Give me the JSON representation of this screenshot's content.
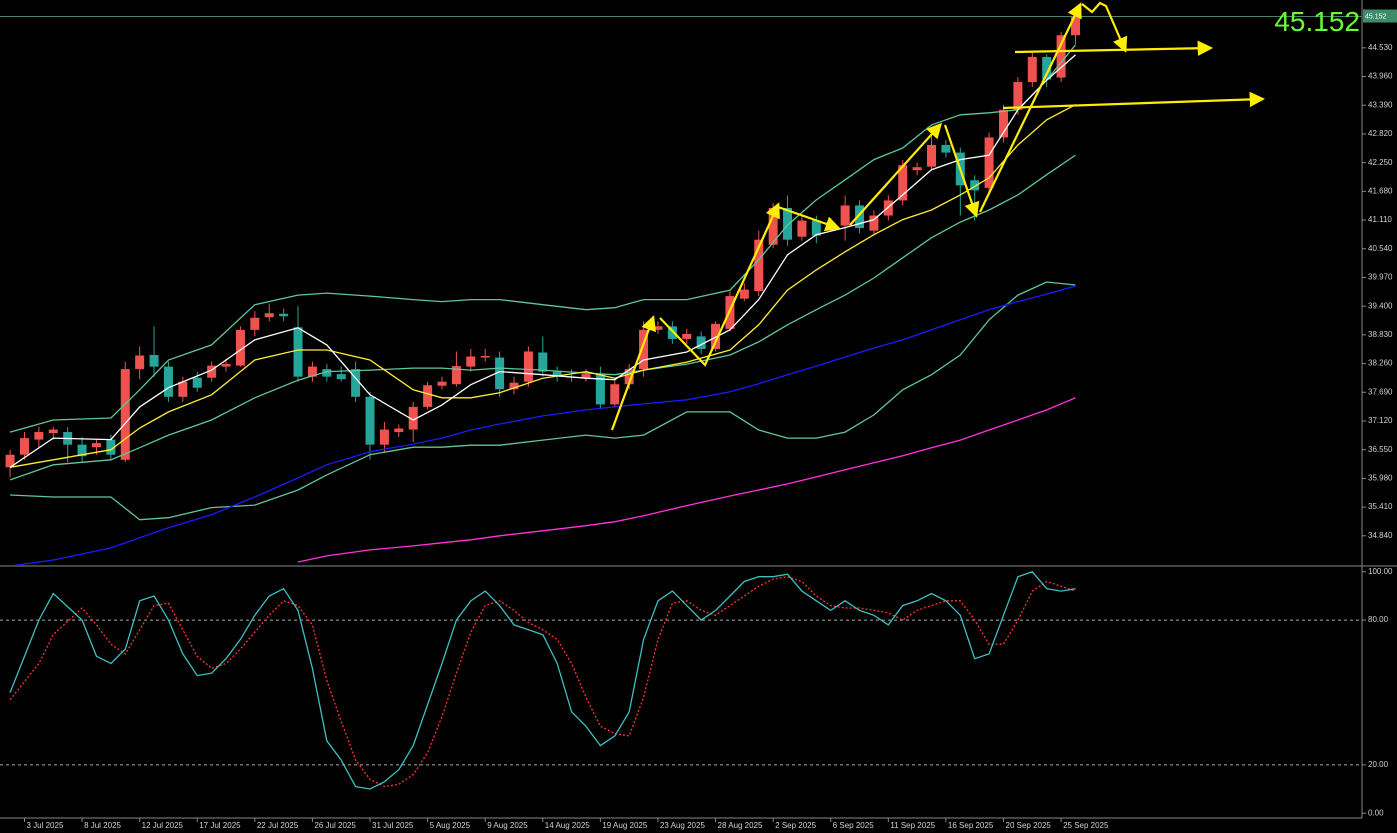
{
  "chart_data": [
    {
      "type": "candlestick",
      "x": [
        0,
        1,
        2,
        3,
        4,
        5,
        6,
        7,
        8,
        9,
        10,
        11,
        12,
        13,
        14,
        15,
        16,
        17,
        18,
        19,
        20,
        21,
        22,
        23,
        24,
        25,
        26,
        27,
        28,
        29,
        30,
        31,
        32,
        33,
        34,
        35,
        36,
        37,
        38,
        39,
        40,
        41,
        42,
        43,
        44,
        45,
        46,
        47,
        48,
        49,
        50,
        51,
        52,
        53,
        54,
        55,
        56,
        57,
        58,
        59,
        60,
        61,
        62,
        63,
        64,
        65,
        66,
        67,
        68,
        69,
        70,
        71,
        72,
        73,
        74
      ],
      "open": [
        36.2,
        36.45,
        36.75,
        36.88,
        36.9,
        36.65,
        36.6,
        36.75,
        36.35,
        38.15,
        38.43,
        38.2,
        37.6,
        37.98,
        37.98,
        38.2,
        38.22,
        38.93,
        39.18,
        39.25,
        38.98,
        38.0,
        38.15,
        38.05,
        38.15,
        37.6,
        36.65,
        36.9,
        36.95,
        37.4,
        37.82,
        37.85,
        38.2,
        38.38,
        38.38,
        37.75,
        37.9,
        38.48,
        38.1,
        38.0,
        37.98,
        38.05,
        37.45,
        37.85,
        38.15,
        38.93,
        39.0,
        38.75,
        38.8,
        38.55,
        38.95,
        39.55,
        39.7,
        40.62,
        41.35,
        40.78,
        41.1,
        41.0,
        41.0,
        41.4,
        40.9,
        41.2,
        41.5,
        42.1,
        42.17,
        42.6,
        42.45,
        41.9,
        41.75,
        42.75,
        43.3,
        43.85,
        44.35,
        43.94,
        44.78
      ],
      "high": [
        36.55,
        36.9,
        37.0,
        37.0,
        37.0,
        36.8,
        36.75,
        36.85,
        38.3,
        38.6,
        39.0,
        38.3,
        38.0,
        38.1,
        38.3,
        38.35,
        39.0,
        39.3,
        39.45,
        39.35,
        39.4,
        38.3,
        38.25,
        38.2,
        38.3,
        37.7,
        37.1,
        37.05,
        37.5,
        37.9,
        38.0,
        38.5,
        38.55,
        38.55,
        38.5,
        38.0,
        38.6,
        38.8,
        38.2,
        38.15,
        38.15,
        38.2,
        37.95,
        38.25,
        39.1,
        39.1,
        39.1,
        38.95,
        38.9,
        39.1,
        39.7,
        39.85,
        40.9,
        41.45,
        41.6,
        41.2,
        41.2,
        41.15,
        41.6,
        41.5,
        41.3,
        41.6,
        42.3,
        42.25,
        42.85,
        42.7,
        42.55,
        42.0,
        42.85,
        43.4,
        43.95,
        44.45,
        44.4,
        44.85,
        45.3
      ],
      "low": [
        36.0,
        36.35,
        36.6,
        36.75,
        36.3,
        36.3,
        36.45,
        36.35,
        36.3,
        37.95,
        38.0,
        37.5,
        37.5,
        37.7,
        37.9,
        38.1,
        38.2,
        38.8,
        39.1,
        39.1,
        37.9,
        37.9,
        37.9,
        37.9,
        37.5,
        36.35,
        36.5,
        36.8,
        36.7,
        37.35,
        37.75,
        37.8,
        38.1,
        38.3,
        37.6,
        37.65,
        37.8,
        38.0,
        37.9,
        37.9,
        37.9,
        37.35,
        37.4,
        37.75,
        38.0,
        38.85,
        38.65,
        38.65,
        38.45,
        38.5,
        38.9,
        39.5,
        39.6,
        40.55,
        40.6,
        40.7,
        40.65,
        40.9,
        40.7,
        40.85,
        40.8,
        41.1,
        41.4,
        42.0,
        42.1,
        42.35,
        41.2,
        41.1,
        41.65,
        42.65,
        43.2,
        43.75,
        43.75,
        43.85,
        44.6
      ],
      "close": [
        36.45,
        36.78,
        36.9,
        36.95,
        36.65,
        36.42,
        36.68,
        36.45,
        38.15,
        38.42,
        38.2,
        37.6,
        37.9,
        37.78,
        38.22,
        38.25,
        38.93,
        39.17,
        39.26,
        39.2,
        38.0,
        38.2,
        38.0,
        37.95,
        37.6,
        36.65,
        36.95,
        36.97,
        37.4,
        37.83,
        37.9,
        38.21,
        38.4,
        38.41,
        37.75,
        37.88,
        38.5,
        38.1,
        38.0,
        37.98,
        38.05,
        37.45,
        37.85,
        38.15,
        38.93,
        39.0,
        38.75,
        38.85,
        38.55,
        39.05,
        39.6,
        39.73,
        40.72,
        41.35,
        40.72,
        41.1,
        40.8,
        41.06,
        41.4,
        40.95,
        41.2,
        41.5,
        42.2,
        42.16,
        42.6,
        42.45,
        41.8,
        41.7,
        42.75,
        43.3,
        43.85,
        44.35,
        43.9,
        44.78,
        45.152
      ],
      "up_color": "#ef5350",
      "down_color": "#26a69a",
      "last_price": 45.152,
      "xlim": [
        -0.7,
        93.9
      ],
      "ylim": [
        34.26,
        45.48
      ],
      "yticks": [
        {
          "value": 44.53,
          "label": "44.530"
        },
        {
          "value": 43.96,
          "label": "43.960"
        },
        {
          "value": 43.39,
          "label": "43.390"
        },
        {
          "value": 42.82,
          "label": "42.820"
        },
        {
          "value": 42.25,
          "label": "42.250"
        },
        {
          "value": 41.68,
          "label": "41.680"
        },
        {
          "value": 41.11,
          "label": "41.110"
        },
        {
          "value": 40.54,
          "label": "40.540"
        },
        {
          "value": 39.97,
          "label": "39.970"
        },
        {
          "value": 39.4,
          "label": "39.400"
        },
        {
          "value": 38.83,
          "label": "38.830"
        },
        {
          "value": 38.26,
          "label": "38.260"
        },
        {
          "value": 37.69,
          "label": "37.690"
        },
        {
          "value": 37.12,
          "label": "37.120"
        },
        {
          "value": 36.55,
          "label": "36.550"
        },
        {
          "value": 35.98,
          "label": "35.980"
        },
        {
          "value": 35.41,
          "label": "35.410"
        },
        {
          "value": 34.84,
          "label": "34.840"
        }
      ],
      "lines": {
        "x": [
          0,
          3,
          7,
          9,
          11,
          14,
          17,
          20,
          22,
          25,
          28,
          30,
          32,
          34,
          37,
          40,
          42,
          44,
          47,
          50,
          52,
          54,
          56,
          58,
          60,
          62,
          64,
          66,
          68,
          70,
          72,
          74
        ],
        "series": [
          {
            "color": "#5fc79a",
            "values": [
              36.9,
              37.14,
              37.18,
              37.74,
              38.33,
              38.63,
              39.43,
              39.62,
              39.66,
              39.6,
              39.53,
              39.49,
              39.53,
              39.53,
              39.43,
              39.33,
              39.37,
              39.53,
              39.53,
              39.72,
              40.32,
              41.01,
              41.51,
              41.91,
              42.31,
              42.54,
              43.0,
              43.2,
              43.24,
              43.3,
              43.89,
              44.59
            ]
          },
          {
            "color": "#5fc79a",
            "values": [
              35.95,
              36.25,
              36.35,
              36.59,
              36.84,
              37.14,
              37.58,
              37.93,
              38.1,
              38.13,
              38.17,
              38.17,
              38.13,
              38.17,
              38.13,
              38.07,
              38.04,
              38.13,
              38.25,
              38.43,
              38.69,
              39.03,
              39.33,
              39.62,
              39.96,
              40.36,
              40.76,
              41.07,
              41.31,
              41.61,
              42.01,
              42.4
            ]
          },
          {
            "color": "#5fc79a",
            "values": [
              35.65,
              35.61,
              35.61,
              35.16,
              35.2,
              35.4,
              35.45,
              35.75,
              36.05,
              36.45,
              36.6,
              36.6,
              36.64,
              36.64,
              36.74,
              36.84,
              36.78,
              36.84,
              37.3,
              37.3,
              36.94,
              36.78,
              36.78,
              36.9,
              37.24,
              37.74,
              38.04,
              38.43,
              39.13,
              39.62,
              39.88,
              39.82
            ]
          },
          {
            "color": "#1a1aff",
            "values": [
              34.24,
              34.36,
              34.6,
              34.8,
              35.0,
              35.26,
              35.61,
              35.99,
              36.25,
              36.51,
              36.66,
              36.78,
              36.94,
              37.06,
              37.22,
              37.34,
              37.4,
              37.46,
              37.54,
              37.7,
              37.86,
              38.04,
              38.21,
              38.39,
              38.57,
              38.73,
              38.93,
              39.13,
              39.33,
              39.49,
              39.64,
              39.8
            ]
          },
          {
            "color": "#ff33dd",
            "values": [
              null,
              null,
              null,
              null,
              null,
              null,
              null,
              34.32,
              34.44,
              34.56,
              34.64,
              34.7,
              34.76,
              34.84,
              34.94,
              35.04,
              35.12,
              35.24,
              35.44,
              35.63,
              35.75,
              35.87,
              36.01,
              36.15,
              36.29,
              36.43,
              36.59,
              36.74,
              36.94,
              37.14,
              37.34,
              37.58
            ]
          },
          {
            "color": "#ffee33",
            "values": [
              36.2,
              36.35,
              36.55,
              36.98,
              37.3,
              37.64,
              38.33,
              38.53,
              38.53,
              38.33,
              37.74,
              37.58,
              37.58,
              37.68,
              37.97,
              38.1,
              37.97,
              38.13,
              38.29,
              38.53,
              39.03,
              39.72,
              40.12,
              40.48,
              40.82,
              41.12,
              41.31,
              41.61,
              41.95,
              42.6,
              43.1,
              43.4
            ]
          },
          {
            "color": "#ffffff",
            "values": [
              36.2,
              36.78,
              36.75,
              37.4,
              37.78,
              38.13,
              38.73,
              38.97,
              38.63,
              37.64,
              37.14,
              37.44,
              37.84,
              38.1,
              38.04,
              37.97,
              37.94,
              38.33,
              38.49,
              38.93,
              39.53,
              40.42,
              40.82,
              40.96,
              41.12,
              41.61,
              42.11,
              42.31,
              42.4,
              43.3,
              43.89,
              44.39
            ]
          }
        ]
      }
    },
    {
      "type": "line",
      "x": [
        0,
        2,
        3,
        5,
        6,
        7,
        8,
        9,
        10,
        11,
        12,
        13,
        14,
        15,
        16,
        17,
        18,
        19,
        20,
        21,
        22,
        23,
        24,
        25,
        26,
        27,
        28,
        29,
        30,
        31,
        32,
        33,
        34,
        35,
        36,
        37,
        38,
        39,
        40,
        41,
        42,
        43,
        44,
        45,
        46,
        47,
        48,
        49,
        50,
        51,
        52,
        53,
        54,
        55,
        56,
        57,
        58,
        59,
        60,
        61,
        62,
        63,
        64,
        65,
        66,
        67,
        68,
        69,
        70,
        71,
        72,
        73,
        74
      ],
      "series": [
        {
          "color": "#ff3333",
          "dashed": true,
          "values": [
            47,
            62,
            74,
            85,
            78,
            70,
            66,
            76,
            86,
            87,
            76,
            65,
            60,
            62,
            68,
            75,
            82,
            88,
            86,
            78,
            55,
            38,
            22,
            14,
            11,
            12,
            16,
            25,
            40,
            58,
            75,
            86,
            88,
            84,
            79,
            76,
            72,
            62,
            48,
            36,
            33,
            32,
            48,
            72,
            87,
            88,
            84,
            82,
            86,
            90,
            94,
            97,
            98,
            96,
            90,
            86,
            85,
            85,
            84,
            83,
            80,
            84,
            86,
            88,
            88,
            80,
            70,
            70,
            80,
            92,
            96,
            94,
            92
          ]
        },
        {
          "color": "#3fbfbf",
          "dashed": false,
          "values": [
            50,
            80,
            91,
            80,
            65,
            62,
            68,
            88,
            90,
            80,
            66,
            57,
            58,
            64,
            72,
            82,
            90,
            93,
            84,
            60,
            30,
            22,
            11,
            10,
            13,
            18,
            28,
            45,
            62,
            80,
            88,
            92,
            86,
            78,
            76,
            74,
            62,
            42,
            36,
            28,
            32,
            42,
            72,
            88,
            92,
            86,
            80,
            84,
            90,
            96,
            98,
            98,
            99,
            92,
            88,
            84,
            88,
            84,
            82,
            78,
            86,
            88,
            91,
            88,
            82,
            64,
            66,
            82,
            98,
            100,
            93,
            92,
            93
          ]
        }
      ],
      "xlim": [
        -0.7,
        93.9
      ],
      "ylim": [
        -2,
        102
      ],
      "yticks": [
        {
          "value": 100,
          "label": "100.00"
        },
        {
          "value": 80,
          "label": "80.00"
        },
        {
          "value": 20,
          "label": "20.00"
        },
        {
          "value": 0,
          "label": "0.00"
        }
      ],
      "xticks": [
        {
          "value": 1,
          "label": "3 Jul 2025"
        },
        {
          "value": 5,
          "label": "8 Jul 2025"
        },
        {
          "value": 9,
          "label": "12 Jul 2025"
        },
        {
          "value": 13,
          "label": "17 Jul 2025"
        },
        {
          "value": 17,
          "label": "22 Jul 2025"
        },
        {
          "value": 21,
          "label": "26 Jul 2025"
        },
        {
          "value": 25,
          "label": "31 Jul 2025"
        },
        {
          "value": 29,
          "label": "5 Aug 2025"
        },
        {
          "value": 33,
          "label": "9 Aug 2025"
        },
        {
          "value": 37,
          "label": "14 Aug 2025"
        },
        {
          "value": 41,
          "label": "19 Aug 2025"
        },
        {
          "value": 45,
          "label": "23 Aug 2025"
        },
        {
          "value": 49,
          "label": "28 Aug 2025"
        },
        {
          "value": 53,
          "label": "2 Sep 2025"
        },
        {
          "value": 57,
          "label": "6 Sep 2025"
        },
        {
          "value": 61,
          "label": "11 Sep 2025"
        },
        {
          "value": 65,
          "label": "16 Sep 2025"
        },
        {
          "value": 69,
          "label": "20 Sep 2025"
        },
        {
          "value": 73,
          "label": "25 Sep 2025"
        }
      ]
    }
  ]
}
